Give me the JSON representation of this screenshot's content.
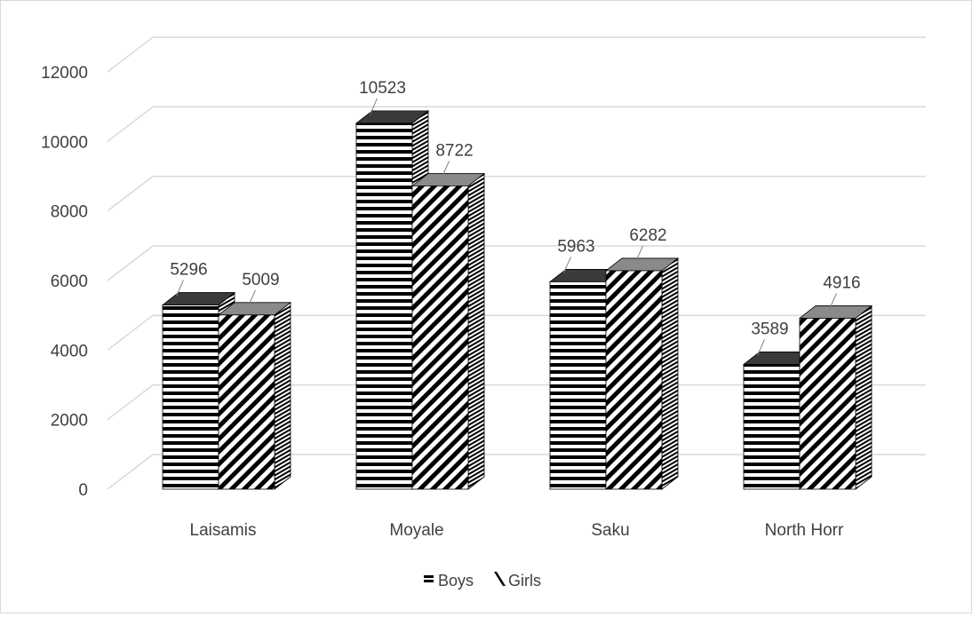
{
  "chart_data": {
    "type": "bar",
    "title": "",
    "xlabel": "",
    "ylabel": "",
    "categories": [
      "Laisamis",
      "Moyale",
      "Saku",
      "North Horr"
    ],
    "series": [
      {
        "name": "Boys",
        "values": [
          5296,
          10523,
          5963,
          3589
        ]
      },
      {
        "name": "Girls",
        "values": [
          5009,
          8722,
          6282,
          4916
        ]
      }
    ],
    "ylim": [
      0,
      12000
    ],
    "yticks": [
      0,
      2000,
      4000,
      6000,
      8000,
      10000,
      12000
    ],
    "grid": true,
    "legend_position": "bottom",
    "style": "3d-column",
    "colors": {
      "mark": "#000000",
      "grid": "#d9d9d9",
      "text": "#404040",
      "frame": "#d9d9d9"
    }
  }
}
